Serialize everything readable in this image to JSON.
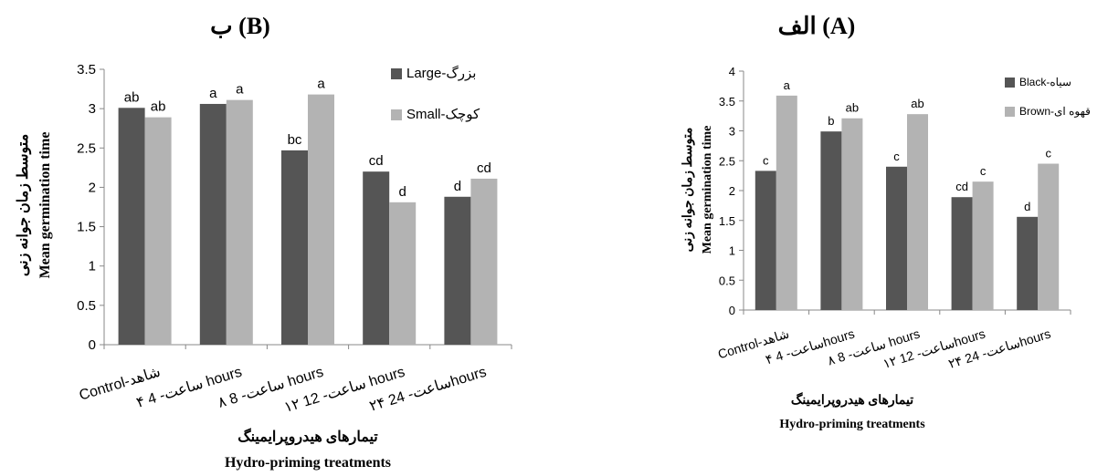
{
  "chart_data": [
    {
      "panel": "B",
      "type": "bar",
      "title": "ب (B)",
      "ylabel_fa": "متوسط زمان جوانه زنی",
      "ylabel_en": "Mean germination time",
      "xlabel_fa": "تیمارهای هیدروپرایمینگ",
      "xlabel_en": "Hydro-priming treatments",
      "ylim": [
        0,
        3.5
      ],
      "yticks": [
        "0",
        "0.5",
        "1",
        "1.5",
        "2",
        "2.5",
        "3",
        "3.5"
      ],
      "grid": false,
      "legend_position": "top-right",
      "categories": [
        "Control-شاهد",
        "۴ ساعت- 4 hours",
        "۸ ساعت- 8  hours",
        "۱۲ ساعت- 12 hours",
        "۲۴ ساعت- 24hours"
      ],
      "series": [
        {
          "name": "Large-بزرگ",
          "color": "#555555",
          "values": [
            3.01,
            3.06,
            2.47,
            2.2,
            1.88
          ],
          "letters": [
            "ab",
            "a",
            "bc",
            "cd",
            "d"
          ]
        },
        {
          "name": "Small-کوچک",
          "color": "#b3b3b3",
          "values": [
            2.89,
            3.11,
            3.18,
            1.81,
            2.11
          ],
          "letters": [
            "ab",
            "a",
            "a",
            "d",
            "cd"
          ]
        }
      ]
    },
    {
      "panel": "A",
      "type": "bar",
      "title": "الف (A)",
      "ylabel_fa": "متوسط زمان جوانه زنی",
      "ylabel_en": "Mean germination time",
      "xlabel_fa": "تیمارهای هیدروپرایمینگ",
      "xlabel_en": "Hydro-priming treatments",
      "ylim": [
        0,
        4
      ],
      "yticks": [
        "0",
        "0.5",
        "1",
        "1.5",
        "2",
        "2.5",
        "3",
        "3.5",
        "4"
      ],
      "grid": false,
      "legend_position": "top-right",
      "categories": [
        "Control-شاهد",
        "۴ ساعت- 4hours",
        "۸ ساعت- 8 hours",
        "۱۲ ساعت- 12hours",
        "۲۴ ساعت- 24hours"
      ],
      "series": [
        {
          "name": "Black-سیاه",
          "color": "#555555",
          "values": [
            2.33,
            2.99,
            2.4,
            1.89,
            1.56
          ],
          "letters": [
            "c",
            "b",
            "c",
            "cd",
            "d"
          ]
        },
        {
          "name": "Brown-قهوه ای",
          "color": "#b3b3b3",
          "values": [
            3.59,
            3.21,
            3.28,
            2.15,
            2.45
          ],
          "letters": [
            "a",
            "ab",
            "ab",
            "c",
            "c"
          ]
        }
      ]
    }
  ]
}
